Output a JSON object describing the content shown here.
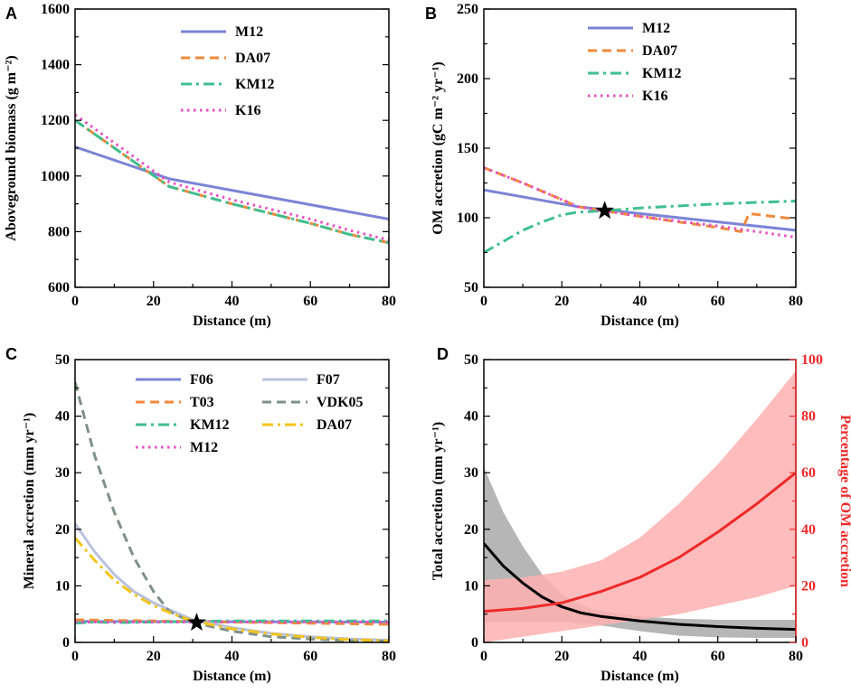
{
  "figure": {
    "panel_letters": [
      "A",
      "B",
      "C",
      "D"
    ]
  },
  "colors": {
    "M12": "#7b84d6",
    "DA07": "#f08a3c",
    "KM12": "#3fbf8f",
    "K16": "#e84fc0",
    "F06": "#7b84d6",
    "F07": "#b9c1dc",
    "T03": "#f08a3c",
    "VDK05": "#7f9187",
    "DA07c": "#f2c418",
    "total": "#000000",
    "total_band": "#9e9e9e",
    "pct": "#ee2a2a",
    "pct_band": "#ffb0b0",
    "star": "#000000"
  },
  "chart_data": [
    {
      "id": "A",
      "type": "line",
      "xlabel": "Distance (m)",
      "ylabel": "Aboveground biomass (g m⁻²)",
      "xlim": [
        0,
        80
      ],
      "ylim": [
        600,
        1600
      ],
      "xticks": [
        0,
        20,
        40,
        60,
        80
      ],
      "yticks": [
        600,
        800,
        1000,
        1200,
        1400,
        1600
      ],
      "series": [
        {
          "name": "M12",
          "style": "solid",
          "color_key": "M12",
          "x": [
            0,
            24,
            80
          ],
          "y": [
            1105,
            990,
            845
          ]
        },
        {
          "name": "DA07",
          "style": "dashed",
          "color_key": "DA07",
          "x": [
            0,
            24,
            40,
            60,
            70,
            80
          ],
          "y": [
            1200,
            962,
            900,
            830,
            790,
            760
          ]
        },
        {
          "name": "KM12",
          "style": "dashdot",
          "color_key": "KM12",
          "x": [
            0,
            24,
            40,
            60,
            70,
            80
          ],
          "y": [
            1200,
            962,
            900,
            830,
            790,
            760
          ]
        },
        {
          "name": "K16",
          "style": "dotted",
          "color_key": "K16",
          "x": [
            0,
            24,
            40,
            60,
            70,
            80
          ],
          "y": [
            1220,
            978,
            915,
            845,
            805,
            770
          ]
        }
      ]
    },
    {
      "id": "B",
      "type": "line",
      "xlabel": "Distance (m)",
      "ylabel": "OM accretion (gC m⁻² yr⁻¹)",
      "xlim": [
        0,
        80
      ],
      "ylim": [
        50,
        250
      ],
      "xticks": [
        0,
        20,
        40,
        60,
        80
      ],
      "yticks": [
        50,
        100,
        150,
        200,
        250
      ],
      "star": {
        "x": 31,
        "y": 105
      },
      "series": [
        {
          "name": "M12",
          "style": "solid",
          "color_key": "M12",
          "x": [
            0,
            24,
            40,
            60,
            80
          ],
          "y": [
            120,
            108,
            103,
            97,
            91
          ]
        },
        {
          "name": "DA07",
          "style": "dashed",
          "color_key": "DA07",
          "x": [
            0,
            10,
            20,
            24,
            40,
            60,
            66,
            68,
            80
          ],
          "y": [
            136,
            125,
            113,
            108,
            101,
            93,
            90,
            103,
            99
          ]
        },
        {
          "name": "KM12",
          "style": "dashdot",
          "color_key": "KM12",
          "x": [
            0,
            5,
            10,
            15,
            20,
            24,
            31,
            40,
            60,
            80
          ],
          "y": [
            75,
            83,
            91,
            97,
            102,
            104,
            105,
            107,
            110,
            112
          ]
        },
        {
          "name": "K16",
          "style": "dotted",
          "color_key": "K16",
          "x": [
            0,
            10,
            20,
            24,
            40,
            60,
            80
          ],
          "y": [
            136,
            125,
            113,
            108,
            101,
            94,
            86
          ]
        }
      ]
    },
    {
      "id": "C",
      "type": "line",
      "xlabel": "Distance (m)",
      "ylabel": "Mineral accretion (mm yr⁻¹)",
      "xlim": [
        0,
        80
      ],
      "ylim": [
        0,
        50
      ],
      "xticks": [
        0,
        20,
        40,
        60,
        80
      ],
      "yticks": [
        0,
        10,
        20,
        30,
        40,
        50
      ],
      "star": {
        "x": 31,
        "y": 3.5
      },
      "series": [
        {
          "name": "F06",
          "style": "solid",
          "color_key": "F06",
          "x": [
            0,
            80
          ],
          "y": [
            3.7,
            3.6
          ]
        },
        {
          "name": "T03",
          "style": "dashed",
          "color_key": "T03",
          "x": [
            0,
            80
          ],
          "y": [
            4.0,
            3.2
          ]
        },
        {
          "name": "KM12",
          "style": "dashdot",
          "color_key": "KM12",
          "x": [
            0,
            5,
            10,
            20,
            30,
            40,
            60,
            80
          ],
          "y": [
            3.4,
            3.6,
            3.5,
            3.6,
            3.7,
            3.8,
            3.8,
            3.8
          ]
        },
        {
          "name": "M12",
          "style": "dotted",
          "color_key": "K16",
          "x": [
            0,
            80
          ],
          "y": [
            3.6,
            3.6
          ]
        },
        {
          "name": "F07",
          "style": "solid",
          "color_key": "F07",
          "x": [
            0,
            5,
            10,
            15,
            20,
            25,
            30,
            40,
            50,
            60,
            70,
            80
          ],
          "y": [
            21,
            16,
            12,
            9,
            7,
            5.5,
            4,
            2.6,
            1.6,
            1.0,
            0.6,
            0.4
          ]
        },
        {
          "name": "VDK05",
          "style": "dashed",
          "color_key": "VDK05",
          "x": [
            0,
            5,
            10,
            15,
            20,
            24,
            30,
            40,
            50,
            60,
            70,
            80
          ],
          "y": [
            46,
            33,
            23,
            15,
            9,
            5.5,
            3.5,
            2.0,
            1.0,
            0.6,
            0.3,
            0.2
          ]
        },
        {
          "name": "DA07",
          "style": "dashdot",
          "color_key": "DA07c",
          "x": [
            0,
            5,
            10,
            15,
            20,
            25,
            30,
            40,
            50,
            60,
            70,
            80
          ],
          "y": [
            18.5,
            14.5,
            11,
            8.5,
            6.5,
            5.0,
            3.8,
            2.4,
            1.5,
            0.9,
            0.5,
            0.3
          ]
        }
      ]
    },
    {
      "id": "D",
      "type": "line",
      "xlabel": "Distance (m)",
      "ylabel": "Total accretion (mm yr⁻¹)",
      "ylabel_right": "Percentage of OM accretion",
      "xlim": [
        0,
        80
      ],
      "ylim": [
        0,
        50
      ],
      "ylim_right": [
        0,
        100
      ],
      "xticks": [
        0,
        20,
        40,
        60,
        80
      ],
      "yticks": [
        0,
        10,
        20,
        30,
        40,
        50
      ],
      "yticks_right": [
        0,
        20,
        40,
        60,
        80,
        100
      ],
      "series": [
        {
          "name": "Total accretion",
          "axis": "left",
          "color_key": "total",
          "x": [
            0,
            5,
            10,
            15,
            20,
            25,
            30,
            40,
            50,
            60,
            70,
            80
          ],
          "y": [
            17.5,
            13.5,
            10.5,
            8.0,
            6.3,
            5.2,
            4.6,
            3.8,
            3.2,
            2.8,
            2.5,
            2.3
          ]
        },
        {
          "name": "Percentage of OM accretion",
          "axis": "right",
          "color_key": "pct",
          "x": [
            0,
            10,
            20,
            30,
            40,
            50,
            60,
            70,
            80
          ],
          "y": [
            11,
            12,
            14,
            18,
            23,
            30,
            39,
            49,
            60
          ]
        }
      ],
      "bands": [
        {
          "axis": "left",
          "color_key": "total_band",
          "x": [
            0,
            5,
            10,
            15,
            20,
            25,
            30,
            40,
            50,
            60,
            70,
            80
          ],
          "lower": [
            3.5,
            3.6,
            3.6,
            3.6,
            3.6,
            3.4,
            3.0,
            2.0,
            1.2,
            0.9,
            0.8,
            0.8
          ],
          "upper": [
            31,
            23,
            17,
            12,
            8.5,
            6.5,
            5.5,
            4.6,
            4.2,
            4.0,
            4.0,
            4.0
          ]
        },
        {
          "axis": "right",
          "color_key": "pct_band",
          "x": [
            0,
            10,
            20,
            30,
            40,
            50,
            60,
            70,
            80
          ],
          "lower": [
            0,
            2,
            4,
            6,
            8,
            10,
            13,
            16,
            20
          ],
          "upper": [
            22,
            23,
            25,
            29,
            37,
            49,
            63,
            79,
            96
          ]
        }
      ]
    }
  ]
}
